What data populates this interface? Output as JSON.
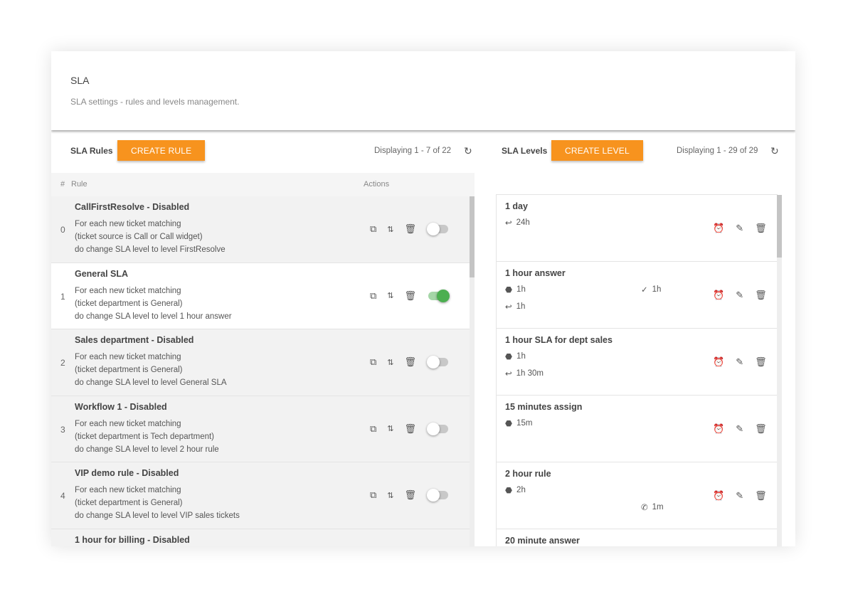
{
  "header": {
    "title": "SLA",
    "subtitle": "SLA settings - rules and levels management."
  },
  "rules": {
    "label": "SLA Rules",
    "create": "CREATE RULE",
    "count": "Displaying 1 - 7 of 22",
    "columns": {
      "index": "#",
      "rule": "Rule",
      "actions": "Actions"
    },
    "items": [
      {
        "index": "0",
        "name": "CallFirstResolve - Disabled",
        "l1": "For each new ticket matching",
        "l2": "(ticket source is Call or Call widget)",
        "l3": "do change SLA level to level FirstResolve",
        "enabled": false
      },
      {
        "index": "1",
        "name": "General SLA",
        "l1": "For each new ticket matching",
        "l2": "(ticket department is General)",
        "l3": "do change SLA level to level 1 hour answer",
        "enabled": true
      },
      {
        "index": "2",
        "name": "Sales department - Disabled",
        "l1": "For each new ticket matching",
        "l2": "(ticket department is General)",
        "l3": "do change SLA level to level General SLA",
        "enabled": false
      },
      {
        "index": "3",
        "name": "Workflow 1 - Disabled",
        "l1": "For each new ticket matching",
        "l2": "(ticket department is Tech department)",
        "l3": "do change SLA level to level 2 hour rule",
        "enabled": false
      },
      {
        "index": "4",
        "name": "VIP demo rule - Disabled",
        "l1": "For each new ticket matching",
        "l2": "(ticket department is General)",
        "l3": "do change SLA level to level VIP sales tickets",
        "enabled": false
      },
      {
        "index": "5",
        "name": "1 hour for billing - Disabled",
        "l1": "",
        "l2": "",
        "l3": "",
        "enabled": false
      }
    ]
  },
  "levels": {
    "label": "SLA Levels",
    "create": "CREATE LEVEL",
    "count": "Displaying 1 - 29 of 29",
    "items": [
      {
        "name": "1 day",
        "first": "",
        "reply": "24h",
        "resolve": "",
        "call": ""
      },
      {
        "name": "1 hour answer",
        "first": "1h",
        "reply": "1h",
        "resolve": "1h",
        "call": ""
      },
      {
        "name": "1 hour SLA for dept sales",
        "first": "1h",
        "reply": "1h 30m",
        "resolve": "",
        "call": ""
      },
      {
        "name": "15 minutes assign",
        "first": "15m",
        "reply": "",
        "resolve": "",
        "call": ""
      },
      {
        "name": "2 hour rule",
        "first": "2h",
        "reply": "",
        "resolve": "",
        "call": "1m"
      },
      {
        "name": "20 minute answer",
        "first": "",
        "reply": "",
        "resolve": "",
        "call": ""
      }
    ]
  },
  "colors": {
    "accent": "#f7931e",
    "toggle_on": "#4caf50"
  }
}
